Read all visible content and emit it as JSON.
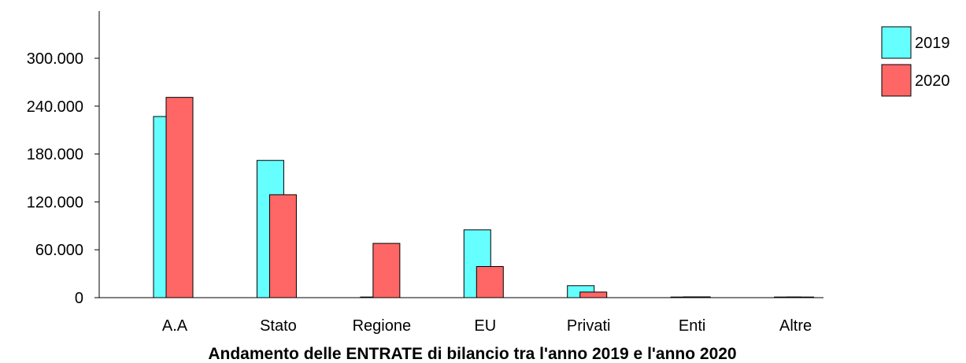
{
  "chart_data": {
    "type": "bar",
    "title": "Andamento delle ENTRATE di bilancio tra l'anno 2019 e l'anno 2020",
    "categories": [
      "A.A",
      "Stato",
      "Regione",
      "EU",
      "Privati",
      "Enti",
      "Altre"
    ],
    "series": [
      {
        "name": "2019",
        "color": "#66FFFF",
        "values": [
          227000,
          172000,
          0,
          85000,
          15000,
          0,
          0
        ]
      },
      {
        "name": "2020",
        "color": "#FF6666",
        "values": [
          251000,
          129000,
          68000,
          39000,
          7000,
          1000,
          0
        ]
      }
    ],
    "y_ticks": [
      0,
      60000,
      120000,
      180000,
      240000,
      300000
    ],
    "y_tick_labels": [
      "0",
      "60.000",
      "120.000",
      "180.000",
      "240.000",
      "300.000"
    ],
    "ylim": [
      0,
      360000
    ],
    "xlabel": "",
    "ylabel": "",
    "grid": false,
    "legend_position": "top-right"
  }
}
